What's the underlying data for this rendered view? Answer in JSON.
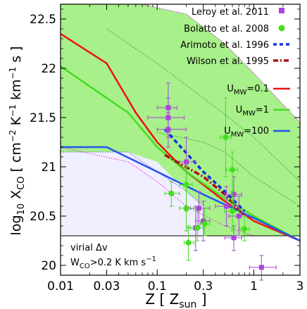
{
  "chart_data": {
    "type": "line",
    "xlabel_main": "Z [ Z",
    "xlabel_sub": "sun",
    "xlabel_end": " ]",
    "ylabel_main": "log",
    "ylabel_sub1": "10",
    "ylabel_mid": " X",
    "ylabel_sub2": "CO",
    "ylabel_units": " [ cm",
    "ylabel_sup1": "−2",
    "ylabel_k": " K",
    "ylabel_sup2": "−1",
    "ylabel_km": " km",
    "ylabel_sup3": "−1",
    "ylabel_end": " s ]",
    "xscale": "log",
    "xlim": [
      0.01,
      3
    ],
    "ylim": [
      19.9,
      22.65
    ],
    "xticks": [
      {
        "v": 0.01,
        "label": "0.01"
      },
      {
        "v": 0.03,
        "label": "0.03"
      },
      {
        "v": 0.1,
        "label": "0.1"
      },
      {
        "v": 0.3,
        "label": "0.3"
      },
      {
        "v": 1,
        "label": "1"
      },
      {
        "v": 3,
        "label": "3"
      }
    ],
    "yticks": [
      {
        "v": 20,
        "label": "20"
      },
      {
        "v": 20.5,
        "label": "20.5"
      },
      {
        "v": 21,
        "label": "21"
      },
      {
        "v": 21.5,
        "label": "21.5"
      },
      {
        "v": 22,
        "label": "22"
      },
      {
        "v": 22.5,
        "label": "22.5"
      }
    ],
    "hline": 20.3,
    "annotation_line1": "virial Δv",
    "annotation_w": "W",
    "annotation_sub": "CO",
    "annotation_rest": ">0.2 K km s",
    "annotation_sup": "−1",
    "bands": [
      {
        "name": "",
        "color": "#a8f08a",
        "upper": [
          [
            0.07,
            22.65
          ],
          [
            0.2,
            22.55
          ],
          [
            0.5,
            22.25
          ],
          [
            1,
            21.95
          ],
          [
            3,
            21.45
          ]
        ],
        "lower": [
          [
            3,
            20.3
          ],
          [
            1,
            20.3
          ],
          [
            0.5,
            20.3
          ],
          [
            0.2,
            20.3
          ],
          [
            0.1,
            20.3
          ],
          [
            0.05,
            20.3
          ],
          [
            0.02,
            20.33
          ],
          [
            0.01,
            20.35
          ]
        ],
        "left_upper": [
          [
            0.01,
            22.65
          ]
        ]
      },
      {
        "name": "",
        "color": "#f0efff",
        "upper": [
          [
            0.01,
            21.15
          ],
          [
            0.05,
            21.15
          ],
          [
            0.1,
            21.05
          ],
          [
            0.2,
            20.75
          ],
          [
            0.3,
            20.6
          ]
        ],
        "lower": [
          [
            0.3,
            20.3
          ],
          [
            0.01,
            20.3
          ]
        ]
      }
    ],
    "dotted_lines": [
      {
        "color": "#dd22dd",
        "points": [
          [
            0.07,
            22.65
          ],
          [
            0.2,
            22.55
          ],
          [
            0.5,
            22.25
          ],
          [
            1,
            21.95
          ],
          [
            3,
            21.45
          ]
        ]
      },
      {
        "color": "#dd22dd",
        "points": [
          [
            0.01,
            21.2
          ],
          [
            0.05,
            21.05
          ],
          [
            0.1,
            20.85
          ],
          [
            0.2,
            20.6
          ],
          [
            0.5,
            20.4
          ],
          [
            1,
            20.3
          ]
        ]
      },
      {
        "color": "#229922",
        "points": [
          [
            0.03,
            22.4
          ],
          [
            0.1,
            22.05
          ],
          [
            0.3,
            21.7
          ],
          [
            1,
            21.3
          ],
          [
            3,
            20.85
          ]
        ]
      },
      {
        "color": "#229922",
        "points": [
          [
            0.1,
            21.35
          ],
          [
            0.3,
            21.25
          ],
          [
            0.5,
            21.15
          ],
          [
            1,
            20.9
          ],
          [
            3,
            20.6
          ]
        ]
      },
      {
        "color": "#4a55cc",
        "points": [
          [
            0.01,
            21.15
          ],
          [
            0.05,
            21.15
          ],
          [
            0.1,
            20.95
          ],
          [
            0.2,
            20.75
          ],
          [
            0.3,
            20.6
          ]
        ]
      }
    ],
    "series": [
      {
        "name": "U",
        "sub": "MW",
        "suffix": "=0.1",
        "color": "#ee1111",
        "style": "solid",
        "points": [
          [
            0.01,
            22.35
          ],
          [
            0.03,
            22.05
          ],
          [
            0.06,
            21.55
          ],
          [
            0.1,
            21.25
          ],
          [
            0.2,
            20.95
          ],
          [
            0.5,
            20.65
          ],
          [
            1,
            20.45
          ],
          [
            3,
            20.25
          ]
        ]
      },
      {
        "name": "U",
        "sub": "MW",
        "suffix": "=1",
        "color": "#44dd22",
        "style": "solid",
        "points": [
          [
            0.01,
            22.02
          ],
          [
            0.05,
            21.55
          ],
          [
            0.1,
            21.2
          ],
          [
            0.2,
            20.95
          ],
          [
            0.5,
            20.68
          ],
          [
            1,
            20.5
          ],
          [
            3,
            20.25
          ]
        ]
      },
      {
        "name": "U",
        "sub": "MW",
        "suffix": "=100",
        "color": "#2255ee",
        "style": "solid",
        "points": [
          [
            0.01,
            21.2
          ],
          [
            0.03,
            21.2
          ],
          [
            0.1,
            20.95
          ],
          [
            0.3,
            20.72
          ],
          [
            1,
            20.48
          ],
          [
            3,
            20.25
          ]
        ]
      },
      {
        "name": "Arimoto et al. 1996",
        "color": "#1133dd",
        "style": "dashed",
        "points": [
          [
            0.12,
            21.38
          ],
          [
            0.3,
            20.95
          ],
          [
            0.5,
            20.75
          ],
          [
            0.8,
            20.55
          ]
        ]
      },
      {
        "name": "Wilson et al. 1995",
        "color": "#aa1111",
        "style": "dashdot",
        "points": [
          [
            0.12,
            21.12
          ],
          [
            0.3,
            20.9
          ],
          [
            0.5,
            20.72
          ],
          [
            0.8,
            20.5
          ]
        ]
      }
    ],
    "points": [
      {
        "name": "Leroy et al. 2011",
        "color": "#aa44dd",
        "marker": "square",
        "data": [
          {
            "x": 0.13,
            "y": 21.6,
            "xl": 0.1,
            "xh": 0.16,
            "yl": 21.35,
            "yh": 21.85
          },
          {
            "x": 0.13,
            "y": 21.5,
            "xl": 0.08,
            "xh": 0.19,
            "yl": 21.3,
            "yh": 21.7
          },
          {
            "x": 0.13,
            "y": 21.38,
            "xl": 0.1,
            "xh": 0.2,
            "yl": 21.2,
            "yh": 21.55
          },
          {
            "x": 0.2,
            "y": 21.05,
            "xl": 0.17,
            "xh": 0.25,
            "yl": 20.8,
            "yh": 21.3
          },
          {
            "x": 0.25,
            "y": 20.38,
            "xl": 0.2,
            "xh": 0.3,
            "yl": 20.15,
            "yh": 20.6
          },
          {
            "x": 0.27,
            "y": 20.58,
            "xl": 0.22,
            "xh": 0.35,
            "yl": 20.4,
            "yh": 20.75
          },
          {
            "x": 0.3,
            "y": 20.45,
            "xl": 0.25,
            "xh": 0.35,
            "yl": 20.25,
            "yh": 20.65
          },
          {
            "x": 0.52,
            "y": 20.6,
            "xl": 0.4,
            "xh": 0.7,
            "yl": 20.4,
            "yh": 20.8
          },
          {
            "x": 0.62,
            "y": 20.72,
            "xl": 0.5,
            "xh": 0.75,
            "yl": 20.55,
            "yh": 20.9
          },
          {
            "x": 0.62,
            "y": 20.28,
            "xl": 0.5,
            "xh": 0.75,
            "yl": 20.15,
            "yh": 20.4
          },
          {
            "x": 0.7,
            "y": 20.5,
            "xl": 0.55,
            "xh": 0.85,
            "yl": 20.3,
            "yh": 20.7
          },
          {
            "x": 1.2,
            "y": 19.98,
            "xl": 0.9,
            "xh": 1.7,
            "yl": 19.85,
            "yh": 20.1
          }
        ]
      },
      {
        "name": "Bolatto et al. 2008",
        "color": "#44dd22",
        "marker": "circle",
        "data": [
          {
            "x": 0.14,
            "y": 20.73,
            "xl": 0.12,
            "xh": 0.17,
            "yl": 20.6,
            "yh": 20.85
          },
          {
            "x": 0.2,
            "y": 20.82,
            "xl": 0.17,
            "xh": 0.23,
            "yl": 20.55,
            "yh": 21.0
          },
          {
            "x": 0.2,
            "y": 20.58,
            "xl": 0.17,
            "xh": 0.24,
            "yl": 20.35,
            "yh": 20.8
          },
          {
            "x": 0.21,
            "y": 20.23,
            "xl": 0.19,
            "xh": 0.24,
            "yl": 20.05,
            "yh": 20.4
          },
          {
            "x": 0.26,
            "y": 20.38,
            "xl": 0.22,
            "xh": 0.3,
            "yl": 20.25,
            "yh": 20.55
          },
          {
            "x": 0.31,
            "y": 20.42,
            "xl": 0.28,
            "xh": 0.35,
            "yl": 20.3,
            "yh": 20.58
          },
          {
            "x": 0.51,
            "y": 21.3,
            "xl": 0.45,
            "xh": 0.58,
            "yl": 20.9,
            "yh": 21.7
          },
          {
            "x": 0.6,
            "y": 20.97,
            "xl": 0.52,
            "xh": 0.68,
            "yl": 20.65,
            "yh": 21.15
          },
          {
            "x": 0.6,
            "y": 20.55,
            "xl": 0.5,
            "xh": 0.7,
            "yl": 20.35,
            "yh": 20.75
          },
          {
            "x": 0.8,
            "y": 20.37,
            "xl": 0.72,
            "xh": 0.9,
            "yl": 20.25,
            "yh": 20.5
          }
        ]
      }
    ],
    "legend": {
      "placement": "top-right",
      "items": [
        {
          "label": "Leroy et al. 2011",
          "kind": "square",
          "color": "#aa44dd"
        },
        {
          "label": "Bolatto et al. 2008",
          "kind": "circle",
          "color": "#44dd22"
        },
        {
          "label": "Arimoto et al. 1996",
          "kind": "dashed",
          "color": "#1133dd"
        },
        {
          "label": "Wilson et al. 1995",
          "kind": "dashdot",
          "color": "#aa1111"
        }
      ]
    }
  }
}
